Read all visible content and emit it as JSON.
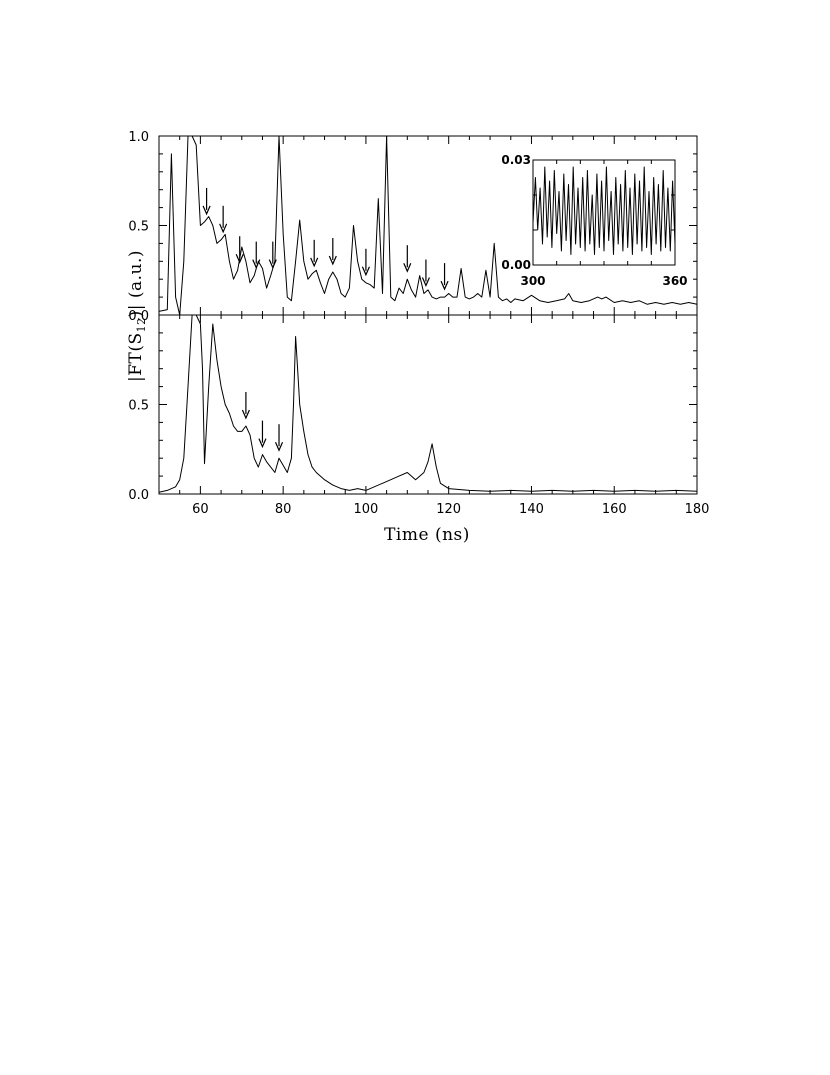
{
  "chart_data": [
    {
      "type": "line",
      "panel": "top",
      "xlim": [
        50,
        180
      ],
      "ylim": [
        0,
        1.0
      ],
      "xlabel": "",
      "ylabel": "",
      "yticks": [
        0.0,
        0.5,
        1.0
      ],
      "ytick_labels": [
        "0.0",
        "0.5",
        "1.0"
      ],
      "grid": false,
      "series": [
        {
          "x": [
            50,
            52,
            53,
            54,
            55,
            56,
            57,
            58,
            59,
            60,
            61,
            62,
            63,
            64,
            65,
            66,
            67,
            68,
            69,
            70,
            71,
            72,
            73,
            74,
            75,
            76,
            77,
            78,
            79,
            80,
            81,
            82,
            83,
            84,
            85,
            86,
            87,
            88,
            89,
            90,
            91,
            92,
            93,
            94,
            95,
            96,
            97,
            98,
            99,
            100,
            101,
            102,
            103,
            104,
            105,
            106,
            107,
            108,
            109,
            110,
            111,
            112,
            113,
            114,
            115,
            116,
            117,
            118,
            119,
            120,
            121,
            122,
            123,
            124,
            125,
            126,
            127,
            128,
            129,
            130,
            131,
            132,
            133,
            134,
            135,
            136,
            138,
            140,
            142,
            144,
            146,
            148,
            149,
            150,
            152,
            154,
            156,
            157,
            158,
            160,
            162,
            164,
            166,
            168,
            170,
            172,
            174,
            176,
            178,
            180
          ],
          "y": [
            0.02,
            0.03,
            0.9,
            0.1,
            0.0,
            0.3,
            1.0,
            1.0,
            0.95,
            0.5,
            0.52,
            0.55,
            0.5,
            0.4,
            0.42,
            0.45,
            0.3,
            0.2,
            0.25,
            0.38,
            0.3,
            0.18,
            0.22,
            0.3,
            0.26,
            0.15,
            0.22,
            0.3,
            1.0,
            0.45,
            0.1,
            0.08,
            0.3,
            0.53,
            0.3,
            0.2,
            0.23,
            0.25,
            0.18,
            0.12,
            0.2,
            0.24,
            0.2,
            0.12,
            0.1,
            0.15,
            0.5,
            0.3,
            0.2,
            0.18,
            0.17,
            0.15,
            0.65,
            0.12,
            1.0,
            0.1,
            0.08,
            0.15,
            0.12,
            0.2,
            0.14,
            0.1,
            0.22,
            0.12,
            0.14,
            0.1,
            0.09,
            0.1,
            0.1,
            0.12,
            0.1,
            0.1,
            0.26,
            0.1,
            0.09,
            0.1,
            0.12,
            0.1,
            0.25,
            0.1,
            0.4,
            0.1,
            0.08,
            0.09,
            0.07,
            0.09,
            0.08,
            0.11,
            0.08,
            0.07,
            0.08,
            0.09,
            0.12,
            0.08,
            0.07,
            0.08,
            0.1,
            0.09,
            0.1,
            0.07,
            0.08,
            0.07,
            0.08,
            0.06,
            0.07,
            0.06,
            0.07,
            0.06,
            0.07,
            0.06
          ]
        }
      ],
      "arrows_x": [
        61.5,
        65.5,
        69.5,
        73.5,
        77.5,
        87.5,
        92,
        100,
        110,
        114.5,
        119
      ]
    },
    {
      "type": "line",
      "panel": "bottom",
      "xlim": [
        50,
        180
      ],
      "ylim": [
        0,
        1.0
      ],
      "xlabel": "Time (ns)",
      "ylabel": "|FT(S12)| (a.u.)",
      "xticks": [
        60,
        80,
        100,
        120,
        140,
        160,
        180
      ],
      "xtick_labels": [
        "60",
        "80",
        "100",
        "120",
        "140",
        "160",
        "180"
      ],
      "yticks": [
        0.0,
        0.5
      ],
      "ytick_labels": [
        "0.0",
        "0.5"
      ],
      "grid": false,
      "series": [
        {
          "x": [
            50,
            52,
            54,
            55,
            56,
            57,
            58,
            59,
            60,
            60.5,
            61,
            62,
            63,
            64,
            65,
            66,
            67,
            68,
            69,
            70,
            71,
            72,
            73,
            74,
            75,
            76,
            77,
            78,
            79,
            80,
            81,
            82,
            82.5,
            83,
            83.5,
            84,
            85,
            86,
            87,
            88,
            90,
            92,
            94,
            96,
            98,
            100,
            104,
            106,
            108,
            110,
            112,
            114,
            115,
            116,
            117,
            118,
            120,
            125,
            130,
            135,
            140,
            145,
            150,
            155,
            160,
            165,
            170,
            175,
            180
          ],
          "y": [
            0.01,
            0.02,
            0.04,
            0.08,
            0.2,
            0.6,
            1.0,
            1.0,
            0.95,
            0.7,
            0.17,
            0.6,
            0.95,
            0.75,
            0.6,
            0.5,
            0.45,
            0.38,
            0.35,
            0.35,
            0.38,
            0.33,
            0.2,
            0.15,
            0.22,
            0.18,
            0.15,
            0.12,
            0.2,
            0.16,
            0.12,
            0.2,
            0.5,
            0.88,
            0.7,
            0.5,
            0.35,
            0.22,
            0.15,
            0.12,
            0.08,
            0.05,
            0.03,
            0.02,
            0.03,
            0.02,
            0.06,
            0.08,
            0.1,
            0.12,
            0.08,
            0.12,
            0.18,
            0.28,
            0.15,
            0.06,
            0.03,
            0.02,
            0.015,
            0.02,
            0.015,
            0.02,
            0.015,
            0.02,
            0.015,
            0.02,
            0.015,
            0.02,
            0.015
          ]
        }
      ],
      "arrows_x": [
        71,
        75,
        79
      ]
    },
    {
      "type": "line",
      "panel": "inset",
      "xlim": [
        300,
        360
      ],
      "ylim": [
        0.0,
        0.03
      ],
      "xticks": [
        300,
        360
      ],
      "xtick_labels": [
        "300",
        "360"
      ],
      "yticks": [
        0.0,
        0.03
      ],
      "ytick_labels": [
        "0.00",
        "0.03"
      ],
      "grid": false,
      "series": [
        {
          "x": [
            300,
            301,
            302,
            303,
            304,
            305,
            306,
            307,
            308,
            309,
            310,
            311,
            312,
            313,
            314,
            315,
            316,
            317,
            318,
            319,
            320,
            321,
            322,
            323,
            324,
            325,
            326,
            327,
            328,
            329,
            330,
            331,
            332,
            333,
            334,
            335,
            336,
            337,
            338,
            339,
            340,
            341,
            342,
            343,
            344,
            345,
            346,
            347,
            348,
            349,
            350,
            351,
            352,
            353,
            354,
            355,
            356,
            357,
            358,
            359,
            360
          ],
          "y": [
            0.012,
            0.025,
            0.01,
            0.022,
            0.006,
            0.028,
            0.008,
            0.024,
            0.005,
            0.027,
            0.009,
            0.021,
            0.004,
            0.026,
            0.007,
            0.023,
            0.003,
            0.028,
            0.006,
            0.022,
            0.005,
            0.025,
            0.004,
            0.027,
            0.006,
            0.02,
            0.003,
            0.026,
            0.005,
            0.024,
            0.004,
            0.028,
            0.007,
            0.021,
            0.003,
            0.025,
            0.006,
            0.023,
            0.004,
            0.027,
            0.005,
            0.022,
            0.003,
            0.026,
            0.006,
            0.024,
            0.004,
            0.028,
            0.005,
            0.021,
            0.003,
            0.025,
            0.006,
            0.023,
            0.004,
            0.027,
            0.005,
            0.022,
            0.004,
            0.024,
            0.006
          ]
        }
      ]
    }
  ],
  "labels": {
    "ylabel_main": "|FT(S",
    "ylabel_sub": "12",
    "ylabel_tail": ")| (a.u.)",
    "xlabel": "Time (ns)"
  }
}
